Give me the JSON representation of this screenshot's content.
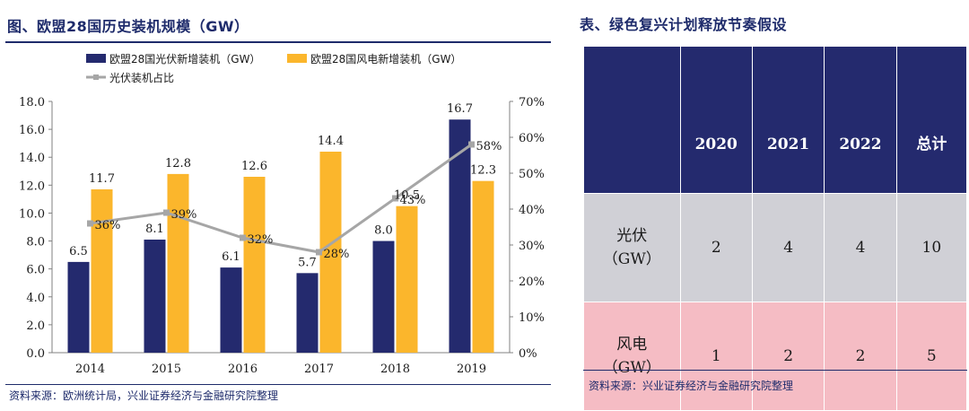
{
  "left_panel": {
    "title": "图、欧盟28国历史装机规模（GW）",
    "source": "资料来源：欧洲统计局，兴业证券经济与金融研究院整理"
  },
  "chart_data": {
    "type": "bar",
    "categories": [
      "2014",
      "2015",
      "2016",
      "2017",
      "2018",
      "2019"
    ],
    "series": [
      {
        "name": "欧盟28国光伏新增装机（GW）",
        "values": [
          6.5,
          8.1,
          6.1,
          5.7,
          8.0,
          16.7
        ],
        "color": "#242a6e",
        "kind": "bar",
        "axis": "left"
      },
      {
        "name": "欧盟28国风电新增装机（GW）",
        "values": [
          11.7,
          12.8,
          12.6,
          14.4,
          10.5,
          12.3
        ],
        "color": "#fbb62c",
        "kind": "bar",
        "axis": "left"
      },
      {
        "name": "光伏装机占比",
        "values": [
          36,
          39,
          32,
          28,
          43,
          58
        ],
        "color": "#a6a6a6",
        "kind": "line",
        "axis": "right"
      }
    ],
    "value_labels": {
      "pv": [
        "6.5",
        "8.1",
        "6.1",
        "5.7",
        "8.0",
        "16.7"
      ],
      "wind": [
        "11.7",
        "12.8",
        "12.6",
        "14.4",
        "10.5",
        "12.3"
      ],
      "share": [
        "36%",
        "39%",
        "32%",
        "28%",
        "43%",
        "58%"
      ]
    },
    "ylim": [
      0,
      18
    ],
    "y_ticks": [
      "0.0",
      "2.0",
      "4.0",
      "6.0",
      "8.0",
      "10.0",
      "12.0",
      "14.0",
      "16.0",
      "18.0"
    ],
    "y2lim": [
      0,
      70
    ],
    "y2_ticks": [
      "0%",
      "10%",
      "20%",
      "30%",
      "40%",
      "50%",
      "60%",
      "70%"
    ],
    "legend_position": "top-left",
    "grid": false
  },
  "right_panel": {
    "title": "表、绿色复兴计划释放节奏假设",
    "columns": [
      "",
      "2020",
      "2021",
      "2022",
      "总计"
    ],
    "rows": [
      {
        "label_line1": "光伏",
        "label_line2": "（GW）",
        "values": [
          "2",
          "4",
          "4",
          "10"
        ]
      },
      {
        "label_line1": "风电",
        "label_line2": "（GW）",
        "values": [
          "1",
          "2",
          "2",
          "5"
        ]
      }
    ],
    "source": "资料来源：兴业证券经济与金融研究院整理"
  }
}
